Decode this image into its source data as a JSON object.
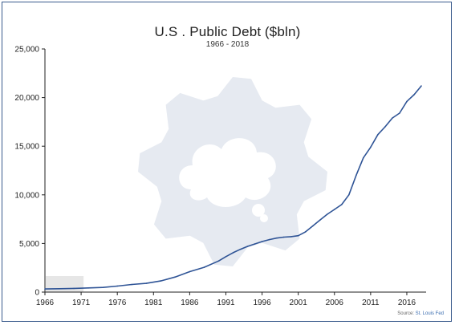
{
  "header": {
    "title": "U.S . Public Debt",
    "title_unit": "($bln)",
    "subtitle": "1966 - 2018"
  },
  "footer": {
    "source_prefix": "Source:",
    "source_name": "St. Louis Fed"
  },
  "colors": {
    "line": "#2f5496",
    "watermark": "#e6eaf1",
    "highlight_box": "#e6e6e6",
    "frame": "#3a5a8c"
  },
  "chart_data": {
    "type": "line",
    "title": "U.S . Public Debt ($bln)",
    "subtitle": "1966 - 2018",
    "xlabel": "",
    "ylabel": "",
    "xlim": [
      1966,
      2018
    ],
    "ylim": [
      0,
      25000
    ],
    "x_ticks": [
      "1966",
      "1971",
      "1976",
      "1981",
      "1986",
      "1991",
      "1996",
      "2001",
      "2006",
      "2011",
      "2016"
    ],
    "y_ticks": [
      "0",
      "5,000",
      "10,000",
      "15,000",
      "20,000",
      "25,000"
    ],
    "grid": false,
    "legend": "none",
    "series": [
      {
        "x": [
          1966,
          1968,
          1970,
          1972,
          1974,
          1976,
          1978,
          1980,
          1982,
          1984,
          1986,
          1988,
          1990,
          1991,
          1992,
          1993,
          1994,
          1995,
          1996,
          1997,
          1998,
          1999,
          2000,
          2001,
          2002,
          2003,
          2004,
          2005,
          2006,
          2007,
          2008,
          2009,
          2010,
          2011,
          2012,
          2013,
          2014,
          2015,
          2016,
          2017,
          2018
        ],
        "values": [
          320,
          350,
          380,
          430,
          480,
          620,
          780,
          900,
          1150,
          1550,
          2100,
          2550,
          3200,
          3650,
          4050,
          4400,
          4700,
          4950,
          5200,
          5400,
          5550,
          5650,
          5700,
          5800,
          6200,
          6800,
          7400,
          8000,
          8500,
          9000,
          10000,
          12000,
          13800,
          14900,
          16200,
          17000,
          17900,
          18400,
          19600,
          20300,
          21200
        ]
      }
    ]
  }
}
